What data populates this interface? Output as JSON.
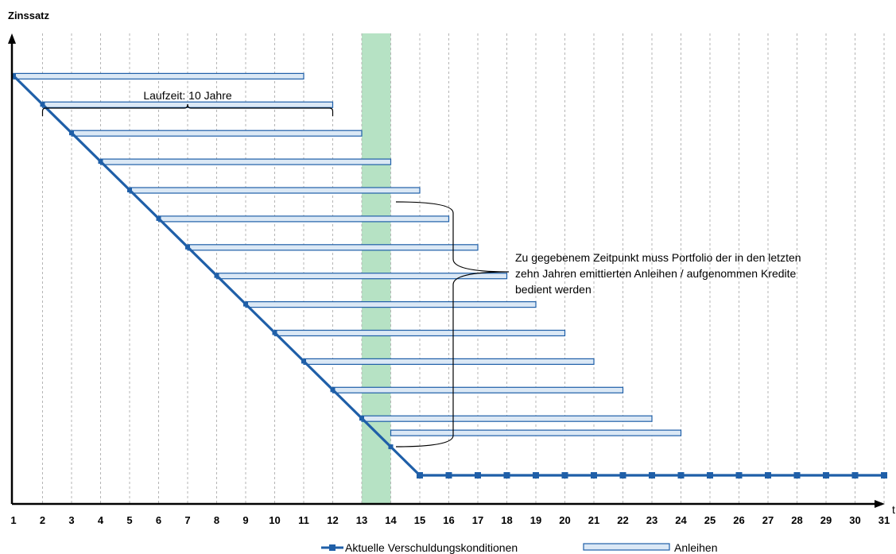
{
  "chart_data": {
    "type": "line",
    "ylabel": "Zinssatz",
    "xlabel": "t",
    "x_ticks": [
      "1",
      "2",
      "3",
      "4",
      "5",
      "6",
      "7",
      "8",
      "9",
      "10",
      "11",
      "12",
      "13",
      "14",
      "15",
      "16",
      "17",
      "18",
      "19",
      "20",
      "21",
      "22",
      "23",
      "24",
      "25",
      "26",
      "27",
      "28",
      "29",
      "30",
      "31"
    ],
    "xlim": [
      1,
      31
    ],
    "grid": "vertical dashed",
    "highlight_band": {
      "from": 13,
      "to": 14,
      "color": "#b6e2c4"
    },
    "series": [
      {
        "name": "Aktuelle Verschuldungskonditionen",
        "color": "#1f5fa8",
        "marker": "square",
        "x": [
          1,
          2,
          3,
          4,
          5,
          6,
          7,
          8,
          9,
          10,
          11,
          12,
          13,
          14,
          15,
          16,
          17,
          18,
          19,
          20,
          21,
          22,
          23,
          24,
          25,
          26,
          27,
          28,
          29,
          30,
          31
        ],
        "y": [
          14,
          13,
          12,
          11,
          10,
          9,
          8,
          7,
          6,
          5,
          4,
          3,
          2,
          1,
          0,
          0,
          0,
          0,
          0,
          0,
          0,
          0,
          0,
          0,
          0,
          0,
          0,
          0,
          0,
          0,
          0
        ],
        "marker_from": 15
      }
    ],
    "bars_series": {
      "name": "Anleihen",
      "fill": "#dbe8f5",
      "stroke": "#1f5fa8",
      "items": [
        {
          "start": 1,
          "end": 11,
          "rate": 14
        },
        {
          "start": 2,
          "end": 12,
          "rate": 13
        },
        {
          "start": 3,
          "end": 13,
          "rate": 12
        },
        {
          "start": 4,
          "end": 14,
          "rate": 11
        },
        {
          "start": 5,
          "end": 15,
          "rate": 10
        },
        {
          "start": 6,
          "end": 16,
          "rate": 9
        },
        {
          "start": 7,
          "end": 17,
          "rate": 8
        },
        {
          "start": 8,
          "end": 18,
          "rate": 7
        },
        {
          "start": 9,
          "end": 19,
          "rate": 6
        },
        {
          "start": 10,
          "end": 20,
          "rate": 5
        },
        {
          "start": 11,
          "end": 21,
          "rate": 4
        },
        {
          "start": 12,
          "end": 22,
          "rate": 3
        },
        {
          "start": 13,
          "end": 23,
          "rate": 2
        },
        {
          "start": 14,
          "end": 24,
          "rate": 1.5
        }
      ]
    },
    "annotations": {
      "laufzeit": {
        "text": "Laufzeit: 10 Jahre",
        "from": 2,
        "to": 12
      },
      "portfolio": {
        "lines": [
          "Zu gegebenem Zeitpunkt muss Portfolio der in den letzten",
          "zehn  Jahren emittierten Anleihen / aufgenommen Kredite",
          "bedient werden"
        ]
      }
    },
    "legend": [
      "Aktuelle Verschuldungskonditionen",
      "Anleihen"
    ],
    "legend_position": "bottom"
  }
}
